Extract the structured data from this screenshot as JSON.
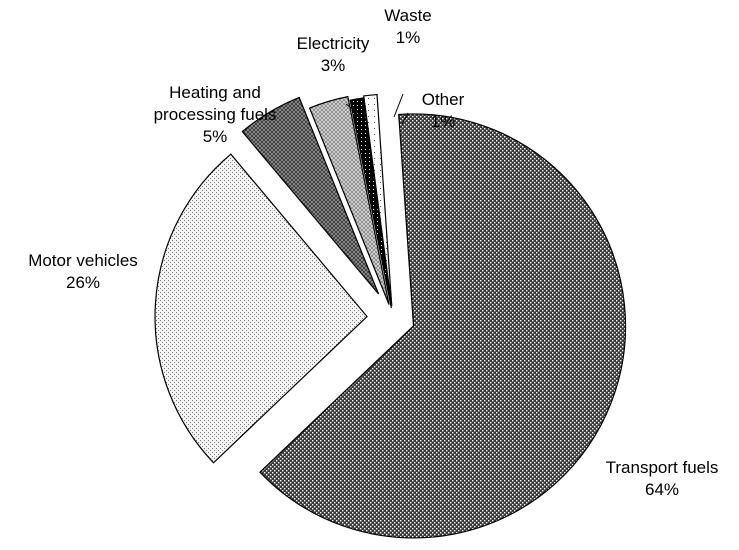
{
  "chart_data": {
    "type": "pie",
    "title": "",
    "slices": [
      {
        "name": "Transport fuels",
        "value": 64,
        "label": "64%",
        "pattern": "dark-dots"
      },
      {
        "name": "Motor vehicles",
        "value": 26,
        "label": "26%",
        "pattern": "light-dots"
      },
      {
        "name": "Heating and processing fuels",
        "value": 5,
        "label": "5%",
        "pattern": "crosshatch"
      },
      {
        "name": "Electricity",
        "value": 3,
        "label": "3%",
        "pattern": "light-crosshatch"
      },
      {
        "name": "Waste",
        "value": 1,
        "label": "1%",
        "pattern": "black-dots"
      },
      {
        "name": "Other",
        "value": 1,
        "label": "1%",
        "pattern": "white-sparse"
      }
    ],
    "legend": "none",
    "label_position": "outside"
  }
}
